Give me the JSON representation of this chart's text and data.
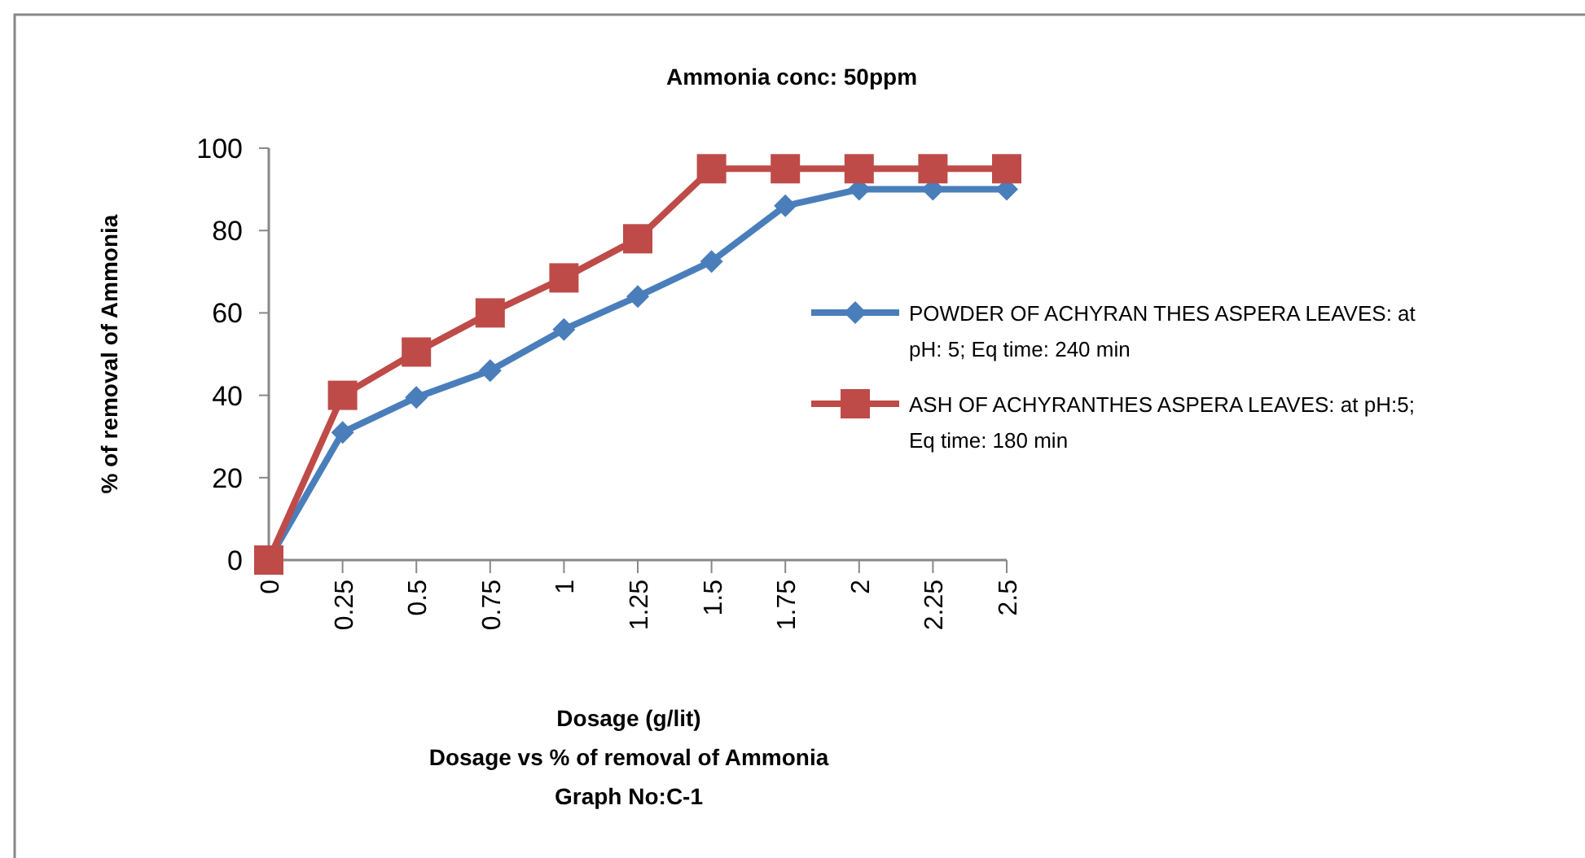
{
  "chart_data": {
    "type": "line",
    "title": "Ammonia conc: 50ppm",
    "xlabel": "Dosage (g/lit)",
    "ylabel": "% of removal of Ammonia",
    "annotations": [
      "Dosage vs % of removal of Ammonia",
      "Graph No:C-1"
    ],
    "categories": [
      "0",
      "0.25",
      "0.5",
      "0.75",
      "1",
      "1.25",
      "1.5",
      "1.75",
      "2",
      "2.25",
      "2.5"
    ],
    "series": [
      {
        "name": "POWDER OF ACHYRAN THES ASPERA LEAVES: at pH: 5; Eq time: 240 min",
        "color": "#4a7ebb",
        "marker": "diamond",
        "values": [
          0,
          31,
          39.5,
          46,
          56,
          64,
          72.5,
          86,
          90,
          90,
          90
        ]
      },
      {
        "name": "ASH OF ACHYRANTHES ASPERA LEAVES: at pH:5; Eq time: 180 min",
        "color": "#be4b48",
        "marker": "square",
        "values": [
          0,
          40,
          50.5,
          60,
          68.5,
          78,
          95,
          95,
          95,
          95,
          95
        ]
      }
    ],
    "ylim": [
      0,
      100
    ],
    "yticks": [
      0,
      20,
      40,
      60,
      80,
      100
    ],
    "grid": false,
    "legend": "right"
  }
}
